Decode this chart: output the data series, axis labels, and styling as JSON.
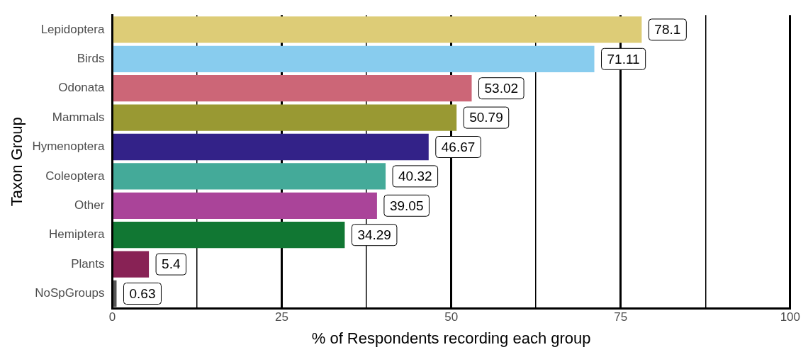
{
  "chart_data": {
    "type": "bar",
    "orientation": "horizontal",
    "xlabel": "% of Respondents recording each group",
    "ylabel": "Taxon Group",
    "categories": [
      "Lepidoptera",
      "Birds",
      "Odonata",
      "Mammals",
      "Hymenoptera",
      "Coleoptera",
      "Other",
      "Hemiptera",
      "Plants",
      "NoSpGroups"
    ],
    "values": [
      78.1,
      71.11,
      53.02,
      50.79,
      46.67,
      40.32,
      39.05,
      34.29,
      5.4,
      0.63
    ],
    "colors": [
      "#ddcc77",
      "#88ccee",
      "#cc6677",
      "#999933",
      "#332288",
      "#44aa99",
      "#aa4499",
      "#117733",
      "#882255",
      "#555555"
    ],
    "xlim": [
      0,
      100
    ],
    "xticks": [
      0,
      {
        "value": 12.5,
        "label": null
      },
      25,
      {
        "value": 37.5,
        "label": null
      },
      50,
      {
        "value": 62.5,
        "label": null
      },
      75,
      {
        "value": 87.5,
        "label": null
      },
      100
    ],
    "grid": "x",
    "data_labels": true
  }
}
